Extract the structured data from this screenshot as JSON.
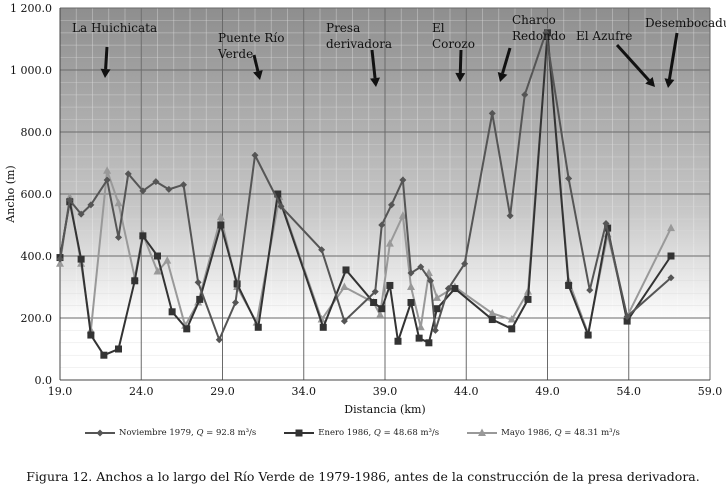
{
  "chart_data": {
    "type": "line",
    "xlabel": "Distancia (km)",
    "ylabel": "Ancho (m)",
    "xlim": [
      19.0,
      59.0
    ],
    "ylim": [
      0,
      1200
    ],
    "xticks": [
      "19.0",
      "24.0",
      "29.0",
      "34.0",
      "39.0",
      "44.0",
      "49.0",
      "54.0",
      "59.0"
    ],
    "xtick_values": [
      19,
      24,
      29,
      34,
      39,
      44,
      49,
      54,
      59
    ],
    "yticks": [
      "0.0",
      "200.0",
      "400.0",
      "600.0",
      "800.0",
      "1 000.0",
      "1 200.0"
    ],
    "ytick_values": [
      0,
      200,
      400,
      600,
      800,
      1000,
      1200
    ],
    "grid": true,
    "legend_position": "bottom",
    "series": [
      {
        "name": "Noviembre 1979, Q = 92.8 m³/s",
        "label_prefix": "Noviembre 1979, ",
        "q_label": "Q",
        " q_value": " = 92.8 m³/s",
        "color": "#555555",
        "marker": "diamond",
        "x": [
          19.0,
          19.6,
          20.3,
          20.9,
          21.9,
          22.6,
          23.2,
          24.1,
          24.9,
          25.7,
          26.6,
          27.5,
          28.8,
          29.8,
          31.0,
          32.6,
          35.1,
          36.5,
          38.4,
          38.8,
          39.4,
          40.1,
          40.6,
          41.2,
          41.8,
          42.1,
          42.9,
          43.9,
          45.6,
          46.7,
          47.6,
          48.9,
          50.3,
          51.6,
          52.6,
          53.9,
          56.6
        ],
        "y": [
          390,
          580,
          535,
          565,
          645,
          460,
          665,
          610,
          640,
          615,
          630,
          315,
          130,
          250,
          725,
          560,
          420,
          190,
          285,
          500,
          565,
          645,
          345,
          365,
          320,
          160,
          295,
          375,
          860,
          530,
          920,
          1120,
          650,
          290,
          505,
          205,
          330
        ]
      },
      {
        "name": "Enero 1986, Q = 48.68 m³/s",
        "label_prefix": "Enero 1986, ",
        "q_label": "Q",
        " q_value": " = 48.68 m³/s",
        "color": "#333333",
        "marker": "square",
        "x": [
          19.0,
          19.6,
          20.3,
          20.9,
          21.7,
          22.6,
          23.6,
          24.1,
          25.0,
          25.9,
          26.8,
          27.6,
          28.9,
          29.9,
          31.2,
          32.4,
          35.2,
          36.6,
          38.3,
          38.8,
          39.3,
          39.8,
          40.6,
          41.1,
          41.7,
          42.2,
          43.3,
          45.6,
          46.8,
          47.8,
          49.0,
          50.3,
          51.5,
          52.7,
          53.9,
          56.6
        ],
        "y": [
          395,
          575,
          390,
          145,
          80,
          100,
          320,
          465,
          400,
          220,
          165,
          260,
          500,
          310,
          170,
          600,
          170,
          355,
          250,
          230,
          305,
          125,
          250,
          135,
          120,
          230,
          295,
          195,
          165,
          260,
          1120,
          305,
          145,
          490,
          190,
          400
        ]
      },
      {
        "name": "Mayo 1986, Q = 48.31 m³/s",
        "label_prefix": "Mayo 1986, ",
        "q_label": "Q",
        " q_value": " = 48.31 m³/s",
        "color": "#999999",
        "marker": "triangle",
        "x": [
          19.0,
          19.6,
          20.3,
          20.9,
          21.9,
          22.6,
          23.6,
          24.1,
          25.0,
          25.6,
          26.7,
          27.5,
          28.9,
          29.9,
          31.1,
          32.5,
          35.1,
          36.5,
          38.3,
          38.7,
          39.3,
          40.1,
          40.6,
          41.2,
          41.7,
          42.2,
          43.3,
          45.6,
          46.8,
          47.8,
          49.0,
          50.3,
          51.5,
          52.7,
          53.9,
          56.6
        ],
        "y": [
          375,
          590,
          375,
          160,
          675,
          570,
          330,
          470,
          350,
          385,
          175,
          250,
          525,
          300,
          185,
          590,
          195,
          300,
          250,
          210,
          440,
          530,
          300,
          170,
          345,
          265,
          300,
          215,
          195,
          285,
          1120,
          320,
          150,
          470,
          205,
          490
        ]
      }
    ],
    "annotations": [
      {
        "lines": [
          "La Huichicata"
        ],
        "arrow_km": 21.8
      },
      {
        "lines": [
          "Puente Río",
          "Verde"
        ],
        "arrow_km": 31.3
      },
      {
        "lines": [
          "Presa",
          "derivadora"
        ],
        "arrow_km": 38.5
      },
      {
        "lines": [
          "El",
          "Corozo"
        ],
        "arrow_km": 43.9
      },
      {
        "lines": [
          "Charco",
          "Redondo"
        ],
        "arrow_km": 46.4
      },
      {
        "lines": [
          "El Azufre"
        ],
        "arrow_km": 55.9
      },
      {
        "lines": [
          "Desembocadura"
        ],
        "arrow_km": 56.5
      }
    ]
  },
  "caption": "Figura 12. Anchos a lo largo del Río Verde de 1979-1986, antes de la construcción de la presa derivadora."
}
